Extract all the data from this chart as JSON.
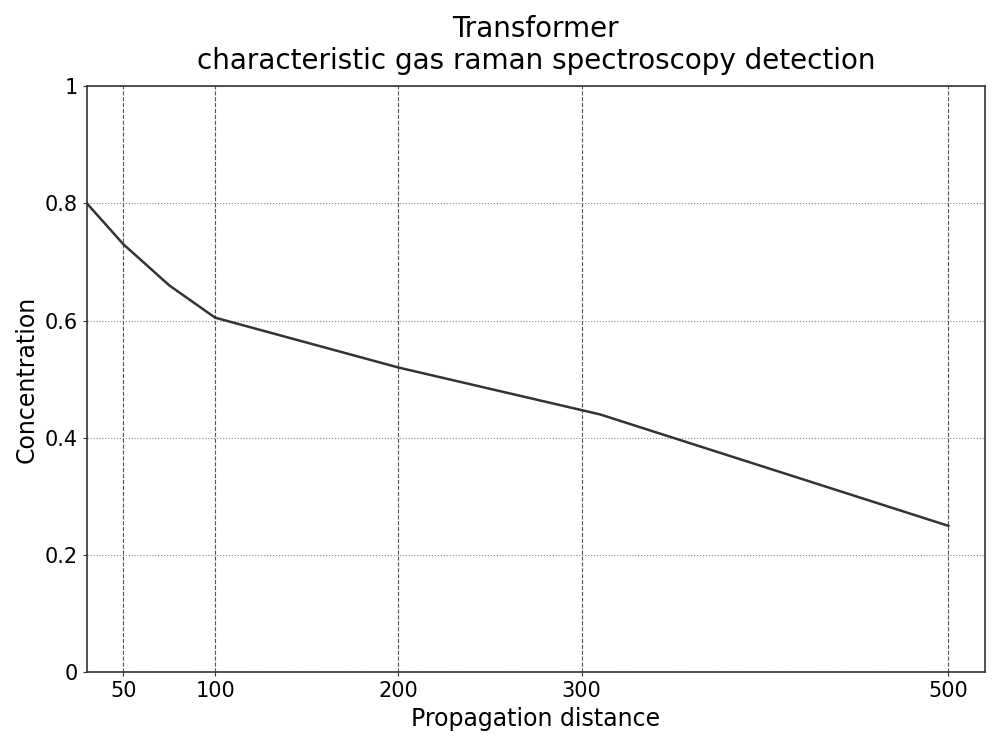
{
  "title_line1": "Transformer",
  "title_line2": "characteristic gas raman spectroscopy detection",
  "xlabel": "Propagation distance",
  "ylabel": "Concentration",
  "x_data": [
    30,
    50,
    75,
    100,
    200,
    310,
    500
  ],
  "y_data": [
    0.8,
    0.73,
    0.66,
    0.605,
    0.52,
    0.44,
    0.25
  ],
  "xlim": [
    30,
    520
  ],
  "ylim": [
    0,
    1.0
  ],
  "xticks": [
    50,
    100,
    200,
    300,
    500
  ],
  "yticks": [
    0,
    0.2,
    0.4,
    0.6,
    0.8,
    1
  ],
  "ytick_labels": [
    "0",
    "0.2",
    "0.4",
    "0.6",
    "0.8",
    "1"
  ],
  "line_color": "#333333",
  "line_width": 1.8,
  "hgrid_color": "#888888",
  "hgrid_linestyle": ":",
  "vgrid_color": "#555555",
  "vgrid_linestyle": "--",
  "background_color": "#ffffff",
  "title_fontsize": 20,
  "label_fontsize": 17,
  "tick_fontsize": 15,
  "fig_width": 10.0,
  "fig_height": 7.46,
  "dpi": 100
}
